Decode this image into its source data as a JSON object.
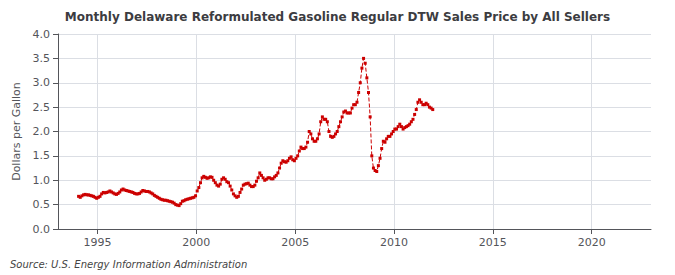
{
  "chart_data": {
    "type": "line",
    "title": "Monthly Delaware Reformulated Gasoline Regular DTW Sales Price by All Sellers",
    "ylabel": "Dollars per Gallon",
    "annotation": "Source: U.S. Energy Information Administration",
    "color": "#cc0000",
    "marker": "square",
    "line_style": "dashed",
    "grid": true,
    "xlim": [
      1993.0,
      2023.0
    ],
    "xticks": [
      1995,
      2000,
      2005,
      2010,
      2015,
      2020
    ],
    "ylim": [
      0.0,
      4.0
    ],
    "yticks": [
      {
        "value": 0.0,
        "label": "0.0"
      },
      0.5,
      {
        "value": 1.0,
        "label": "1.0"
      },
      1.5,
      {
        "value": 2.0,
        "label": "2.0"
      },
      2.5,
      {
        "value": 3.0,
        "label": "3.0"
      },
      3.5,
      {
        "value": 4.0,
        "label": "4.0"
      }
    ],
    "x": [
      1994.0416666667,
      1994.125,
      1994.2083333333,
      1994.2916666667,
      1994.375,
      1994.4583333333,
      1994.5416666667,
      1994.625,
      1994.7083333333,
      1994.7916666667,
      1994.875,
      1994.9583333333,
      1995.0416666667,
      1995.125,
      1995.2083333333,
      1995.2916666667,
      1995.375,
      1995.4583333333,
      1995.5416666667,
      1995.625,
      1995.7083333333,
      1995.7916666667,
      1995.875,
      1995.9583333333,
      1996.0416666667,
      1996.125,
      1996.2083333333,
      1996.2916666667,
      1996.375,
      1996.4583333333,
      1996.5416666667,
      1996.625,
      1996.7083333333,
      1996.7916666667,
      1996.875,
      1996.9583333333,
      1997.0416666667,
      1997.125,
      1997.2083333333,
      1997.2916666667,
      1997.375,
      1997.4583333333,
      1997.5416666667,
      1997.625,
      1997.7083333333,
      1997.7916666667,
      1997.875,
      1997.9583333333,
      1998.0416666667,
      1998.125,
      1998.2083333333,
      1998.2916666667,
      1998.375,
      1998.4583333333,
      1998.5416666667,
      1998.625,
      1998.7083333333,
      1998.7916666667,
      1998.875,
      1998.9583333333,
      1999.0416666667,
      1999.125,
      1999.2083333333,
      1999.2916666667,
      1999.375,
      1999.4583333333,
      1999.5416666667,
      1999.625,
      1999.7083333333,
      1999.7916666667,
      1999.875,
      1999.9583333333,
      2000.0416666667,
      2000.125,
      2000.2083333333,
      2000.2916666667,
      2000.375,
      2000.4583333333,
      2000.5416666667,
      2000.625,
      2000.7083333333,
      2000.7916666667,
      2000.875,
      2000.9583333333,
      2001.0416666667,
      2001.125,
      2001.2083333333,
      2001.2916666667,
      2001.375,
      2001.4583333333,
      2001.5416666667,
      2001.625,
      2001.7083333333,
      2001.7916666667,
      2001.875,
      2001.9583333333,
      2002.0416666667,
      2002.125,
      2002.2083333333,
      2002.2916666667,
      2002.375,
      2002.4583333333,
      2002.5416666667,
      2002.625,
      2002.7083333333,
      2002.7916666667,
      2002.875,
      2002.9583333333,
      2003.0416666667,
      2003.125,
      2003.2083333333,
      2003.2916666667,
      2003.375,
      2003.4583333333,
      2003.5416666667,
      2003.625,
      2003.7083333333,
      2003.7916666667,
      2003.875,
      2003.9583333333,
      2004.0416666667,
      2004.125,
      2004.2083333333,
      2004.2916666667,
      2004.375,
      2004.4583333333,
      2004.5416666667,
      2004.625,
      2004.7083333333,
      2004.7916666667,
      2004.875,
      2004.9583333333,
      2005.0416666667,
      2005.125,
      2005.2083333333,
      2005.2916666667,
      2005.375,
      2005.4583333333,
      2005.5416666667,
      2005.625,
      2005.7083333333,
      2005.7916666667,
      2005.875,
      2005.9583333333,
      2006.0416666667,
      2006.125,
      2006.2083333333,
      2006.2916666667,
      2006.375,
      2006.4583333333,
      2006.5416666667,
      2006.625,
      2006.7083333333,
      2006.7916666667,
      2006.875,
      2006.9583333333,
      2007.0416666667,
      2007.125,
      2007.2083333333,
      2007.2916666667,
      2007.375,
      2007.4583333333,
      2007.5416666667,
      2007.625,
      2007.7083333333,
      2007.7916666667,
      2007.875,
      2007.9583333333,
      2008.0416666667,
      2008.125,
      2008.2083333333,
      2008.2916666667,
      2008.375,
      2008.4583333333,
      2008.5416666667,
      2008.625,
      2008.7083333333,
      2008.7916666667,
      2008.875,
      2008.9583333333,
      2009.0416666667,
      2009.125,
      2009.2083333333,
      2009.2916666667,
      2009.375,
      2009.4583333333,
      2009.5416666667,
      2009.625,
      2009.7083333333,
      2009.7916666667,
      2009.875,
      2009.9583333333,
      2010.0416666667,
      2010.125,
      2010.2083333333,
      2010.2916666667,
      2010.375,
      2010.4583333333,
      2010.5416666667,
      2010.625,
      2010.7083333333,
      2010.7916666667,
      2010.875,
      2010.9583333333,
      2011.0416666667,
      2011.125,
      2011.2083333333,
      2011.2916666667,
      2011.375,
      2011.4583333333,
      2011.5416666667,
      2011.625,
      2011.7083333333,
      2011.7916666667,
      2011.875,
      2011.9583333333
    ],
    "values": [
      0.67,
      0.65,
      0.68,
      0.7,
      0.71,
      0.7,
      0.7,
      0.69,
      0.68,
      0.67,
      0.65,
      0.63,
      0.65,
      0.67,
      0.72,
      0.75,
      0.74,
      0.75,
      0.76,
      0.78,
      0.76,
      0.74,
      0.72,
      0.71,
      0.73,
      0.76,
      0.8,
      0.82,
      0.8,
      0.79,
      0.78,
      0.77,
      0.76,
      0.75,
      0.73,
      0.72,
      0.72,
      0.73,
      0.76,
      0.79,
      0.78,
      0.77,
      0.77,
      0.76,
      0.74,
      0.72,
      0.69,
      0.67,
      0.65,
      0.63,
      0.61,
      0.6,
      0.59,
      0.59,
      0.58,
      0.57,
      0.56,
      0.55,
      0.53,
      0.5,
      0.49,
      0.48,
      0.52,
      0.57,
      0.58,
      0.6,
      0.61,
      0.62,
      0.63,
      0.64,
      0.65,
      0.68,
      0.78,
      0.85,
      0.95,
      1.05,
      1.08,
      1.06,
      1.04,
      1.05,
      1.07,
      1.06,
      1.0,
      0.95,
      0.9,
      0.88,
      0.92,
      1.02,
      1.05,
      1.02,
      0.97,
      0.95,
      0.88,
      0.8,
      0.72,
      0.68,
      0.65,
      0.67,
      0.75,
      0.82,
      0.9,
      0.92,
      0.93,
      0.94,
      0.9,
      0.87,
      0.87,
      0.9,
      0.98,
      1.05,
      1.15,
      1.1,
      1.05,
      1.0,
      1.02,
      1.05,
      1.05,
      1.03,
      1.03,
      1.07,
      1.1,
      1.15,
      1.25,
      1.35,
      1.4,
      1.38,
      1.37,
      1.4,
      1.45,
      1.48,
      1.42,
      1.4,
      1.45,
      1.5,
      1.6,
      1.68,
      1.65,
      1.65,
      1.68,
      1.78,
      2.0,
      1.95,
      1.85,
      1.8,
      1.8,
      1.85,
      1.95,
      2.2,
      2.3,
      2.25,
      2.25,
      2.2,
      2.0,
      1.9,
      1.88,
      1.9,
      1.95,
      2.0,
      2.1,
      2.2,
      2.3,
      2.4,
      2.42,
      2.38,
      2.38,
      2.38,
      2.48,
      2.55,
      2.55,
      2.6,
      2.8,
      3.0,
      3.3,
      3.5,
      3.4,
      3.1,
      2.8,
      2.3,
      1.5,
      1.25,
      1.2,
      1.18,
      1.3,
      1.45,
      1.65,
      1.8,
      1.78,
      1.85,
      1.9,
      1.9,
      1.95,
      2.0,
      2.05,
      2.05,
      2.1,
      2.15,
      2.1,
      2.05,
      2.08,
      2.1,
      2.12,
      2.15,
      2.2,
      2.25,
      2.35,
      2.45,
      2.6,
      2.65,
      2.6,
      2.55,
      2.55,
      2.58,
      2.55,
      2.5,
      2.48,
      2.45
    ]
  }
}
